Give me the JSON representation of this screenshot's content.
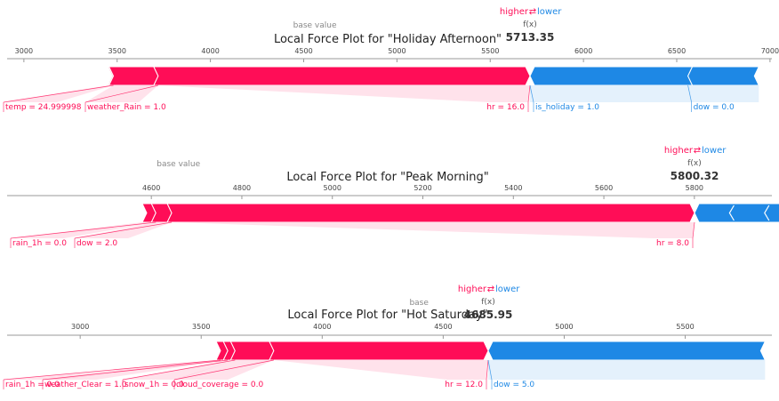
{
  "colors": {
    "positive": "#ff0d57",
    "negative": "#1e88e5",
    "axis": "#999999"
  },
  "legend": {
    "higher": "higher",
    "arrows": "⇄",
    "lower": "lower",
    "fx": "f(x)",
    "base": "base value"
  },
  "chart_data": [
    {
      "type": "force",
      "title": "Local Force Plot for \"Holiday Afternoon\"",
      "xlim": [
        2900,
        7000
      ],
      "ticks": [
        3000,
        3500,
        4000,
        4500,
        5000,
        5500,
        6000,
        6500,
        7000
      ],
      "fx_value": 5713.35,
      "fx_text": "5713.35",
      "base_label": "base value",
      "base_value": 4560,
      "bar_start": 3450,
      "bar_end": 6940,
      "positive": [
        {
          "label": "temp = 24.999998",
          "from": 3450,
          "to": 3480
        },
        {
          "label": "weather_Rain = 1.0",
          "from": 3480,
          "to": 3720
        },
        {
          "label": "hr = 16.0",
          "from": 3720,
          "to": 5713.35
        }
      ],
      "negative": [
        {
          "label": "is_holiday = 1.0",
          "from": 5713.35,
          "to": 6560
        },
        {
          "label": "dow = 0.0",
          "from": 6560,
          "to": 6940
        }
      ]
    },
    {
      "type": "force",
      "title": "Local Force Plot for \"Peak Morning\"",
      "xlim": [
        4460,
        6150
      ],
      "ticks": [
        4600,
        4800,
        5000,
        5200,
        5400,
        5600,
        5800
      ],
      "fx_value": 5800.32,
      "fx_text": "5800.32",
      "base_label": "base value",
      "base_value": 4660,
      "bar_start": 4580,
      "bar_end": 6110,
      "positive": [
        {
          "label": "rain_1h = 0.0",
          "from": 4580,
          "to": 4610
        },
        {
          "label": "dow = 2.0",
          "from": 4610,
          "to": 4645
        },
        {
          "label": "hr = 8.0",
          "from": 4645,
          "to": 5800.32
        }
      ],
      "negative": [
        {
          "label": "",
          "from": 5800.32,
          "to": 6110
        }
      ]
    },
    {
      "type": "force",
      "title": "Local Force Plot for \"Hot Saturday\"",
      "xlim": [
        2720,
        5880
      ],
      "ticks": [
        3000,
        3500,
        4000,
        4500,
        5000,
        5500
      ],
      "fx_value": 4685.95,
      "fx_text": "4685.95",
      "base_label": "base",
      "base_value": 4400,
      "bar_start": 3560,
      "bar_end": 5830,
      "positive": [
        {
          "label": "rain_1h = 0.0",
          "from": 3560,
          "to": 3580
        },
        {
          "label": "weather_Clear = 1.0",
          "from": 3580,
          "to": 3610
        },
        {
          "label": "snow_1h = 0.0",
          "from": 3610,
          "to": 3640
        },
        {
          "label": "cloud_coverage = 0.0",
          "from": 3640,
          "to": 3800
        },
        {
          "label": "hr = 12.0",
          "from": 3800,
          "to": 4685.95
        }
      ],
      "negative": [
        {
          "label": "dow = 5.0",
          "from": 4685.95,
          "to": 5830
        }
      ]
    }
  ]
}
